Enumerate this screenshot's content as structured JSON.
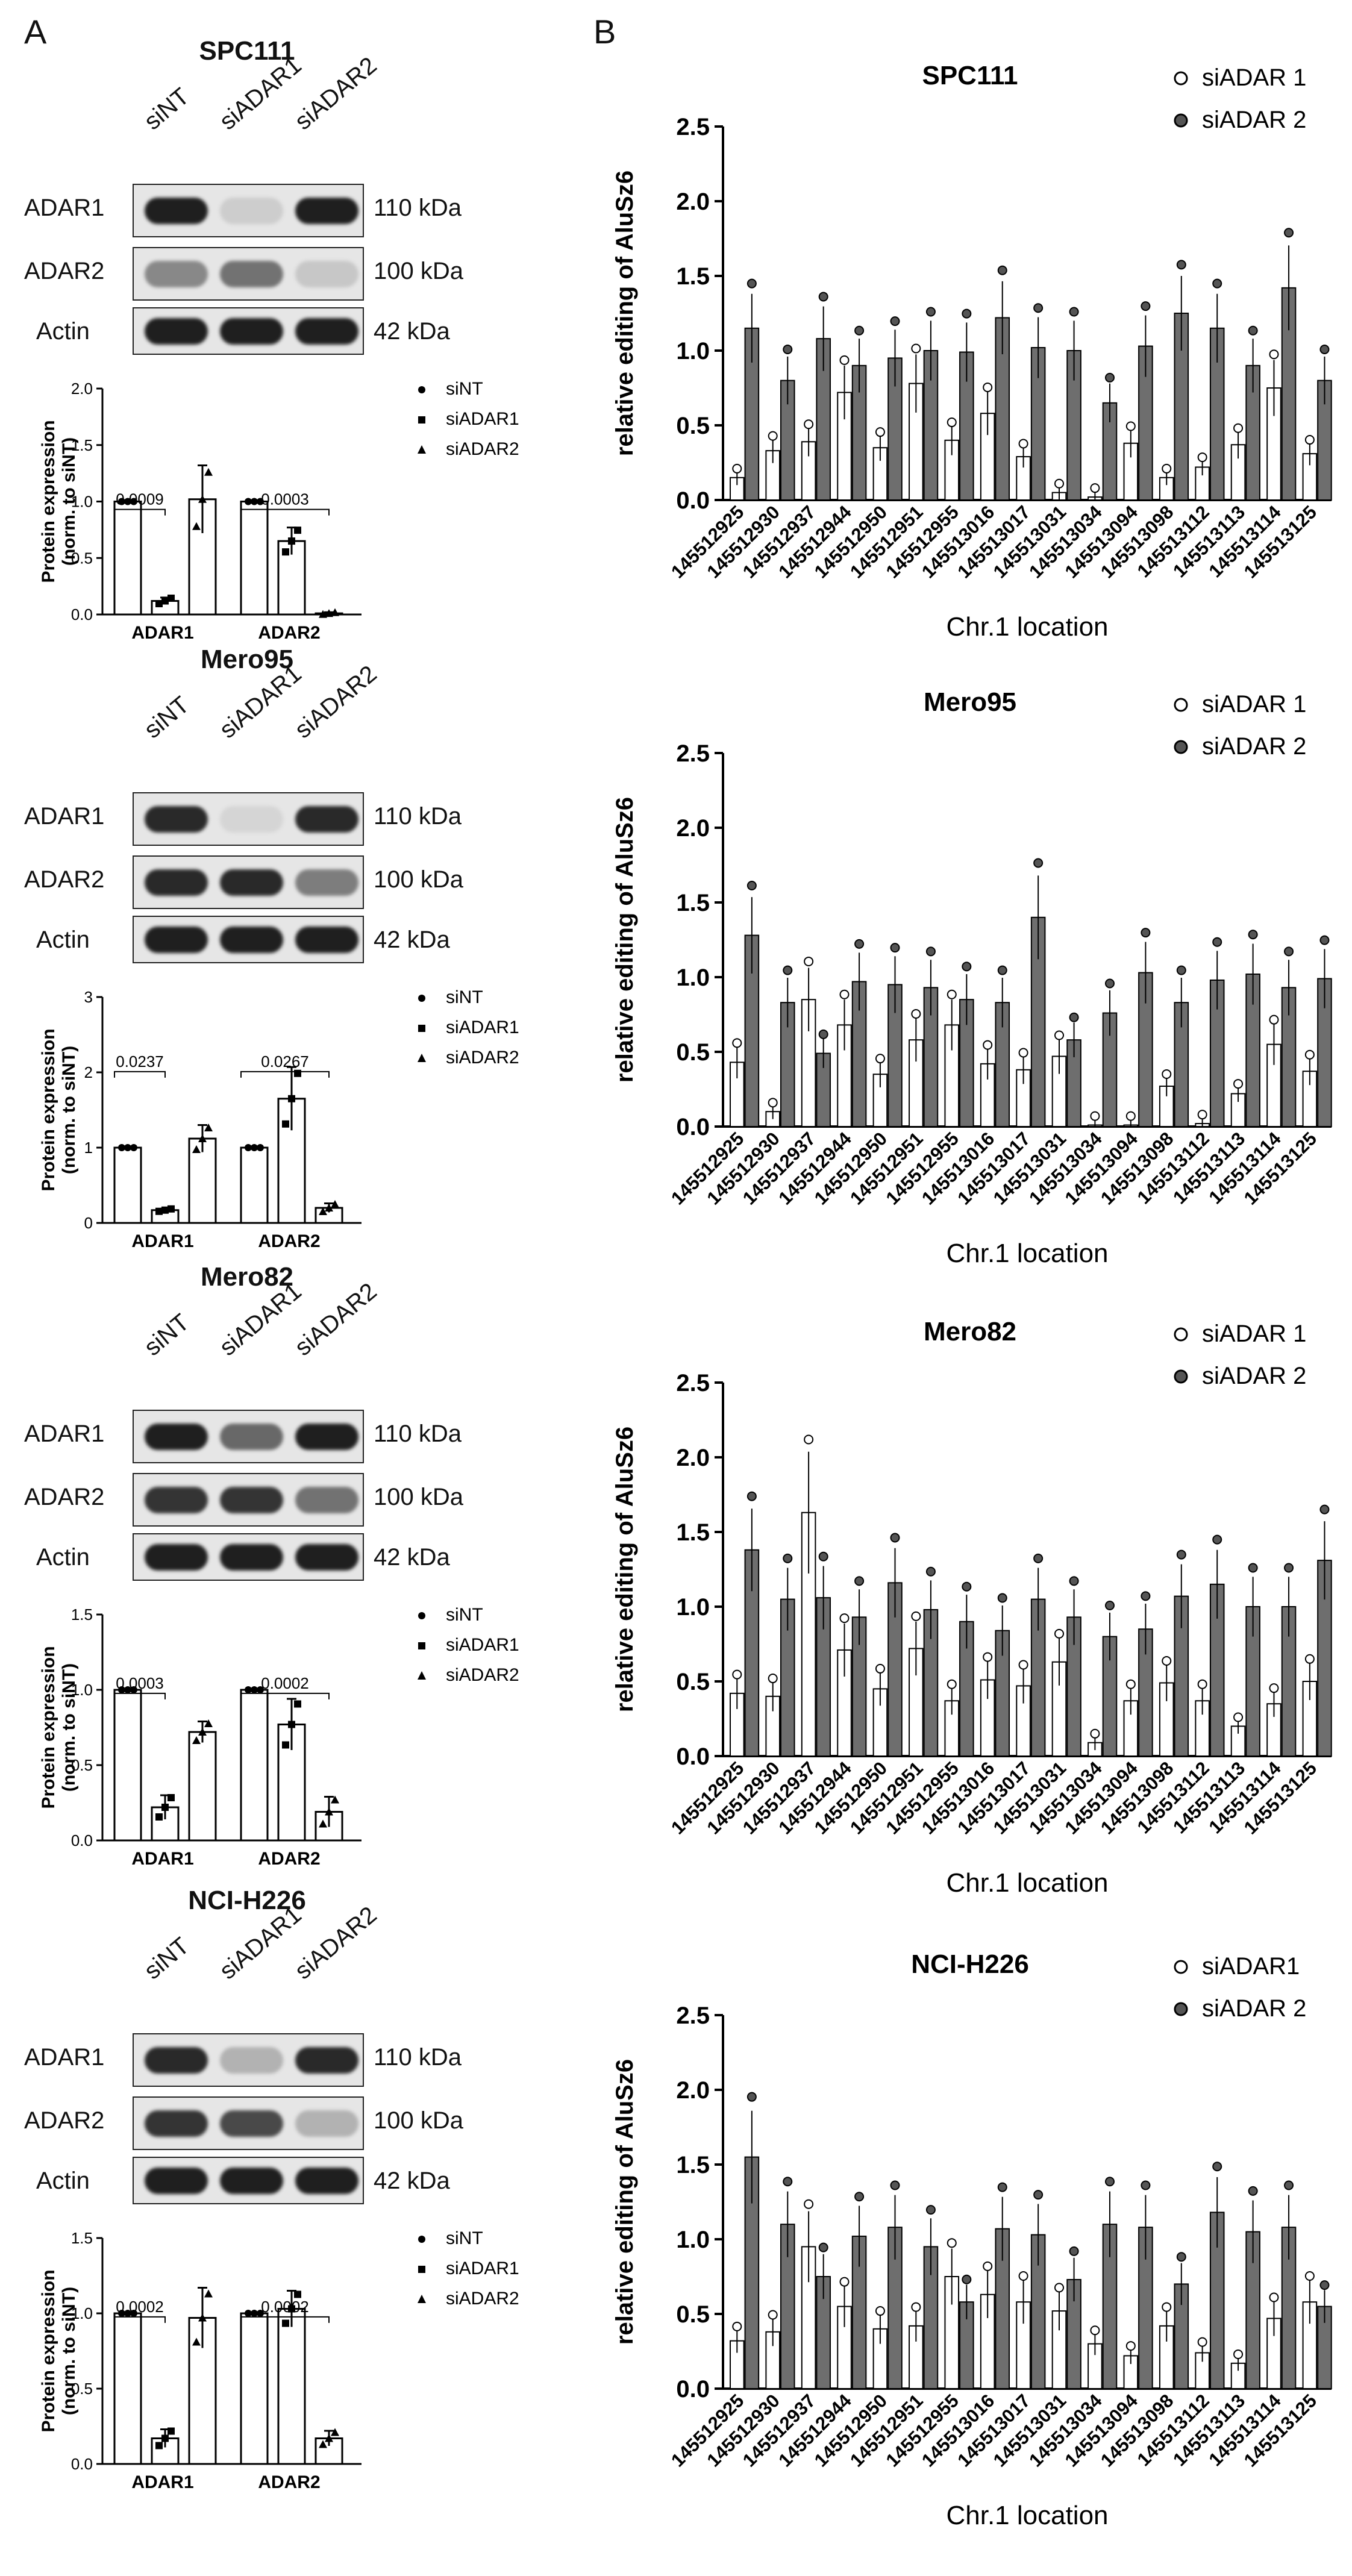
{
  "panels": {
    "a": "A",
    "b": "B"
  },
  "lanes": [
    "siNT",
    "siADAR1",
    "siADAR2"
  ],
  "kda": {
    "adar1": "110 kDa",
    "adar2": "100 kDa",
    "actin": "42 kDa"
  },
  "band_labels": {
    "adar1": "ADAR1",
    "adar2": "ADAR2",
    "actin": "Actin"
  },
  "a_legend": [
    "siNT",
    "siADAR1",
    "siADAR2"
  ],
  "a_ylabel_sub": "(norm. to siNT)",
  "a_ylabel_main": "Protein expression",
  "a_groups": [
    "ADAR1",
    "ADAR2"
  ],
  "b_legend": [
    "siADAR 1",
    "siADAR 2"
  ],
  "b_ylabel": "relative editing of AluSz6",
  "b_xlabel": "Chr.1 location",
  "b_positions": [
    "145512925",
    "145512930",
    "145512937",
    "145512944",
    "145512950",
    "145512951",
    "145512955",
    "145513016",
    "145513017",
    "145513031",
    "145513034",
    "145513094",
    "145513098",
    "145513112",
    "145513113",
    "145513114",
    "145513125"
  ],
  "cells": [
    {
      "name": "SPC111",
      "blot": {
        "adar1": [
          0.95,
          0.12,
          0.95
        ],
        "adar2": [
          0.45,
          0.55,
          0.15
        ],
        "actin": [
          0.95,
          0.95,
          0.95
        ]
      },
      "quant": {
        "ymax": 2.0,
        "ticks": [
          "0.0",
          "0.5",
          "1.0",
          "1.5",
          "2.0"
        ],
        "adar1": [
          1.0,
          0.12,
          1.02
        ],
        "adar2": [
          1.0,
          0.65,
          0.01
        ],
        "adar1_err": [
          0.0,
          0.03,
          0.3
        ],
        "adar2_err": [
          0.0,
          0.12,
          0.01
        ],
        "sig1": "0.0009",
        "sig2": "0.0003",
        "legend_labels": [
          "siNT",
          "siADAR1",
          "siADAR2"
        ]
      },
      "editing": {
        "ymax": 2.5,
        "si1": [
          0.15,
          0.33,
          0.39,
          0.72,
          0.35,
          0.78,
          0.4,
          0.58,
          0.29,
          0.05,
          0.02,
          0.38,
          0.15,
          0.22,
          0.37,
          0.75,
          0.31
        ],
        "si2": [
          1.15,
          0.8,
          1.08,
          0.9,
          0.95,
          1.0,
          0.99,
          1.22,
          1.02,
          1.0,
          0.65,
          1.03,
          1.25,
          1.15,
          0.9,
          1.42,
          0.8
        ]
      }
    },
    {
      "name": "Mero95",
      "blot": {
        "adar1": [
          0.9,
          0.08,
          0.9
        ],
        "adar2": [
          0.9,
          0.9,
          0.5
        ],
        "actin": [
          0.95,
          0.95,
          0.95
        ]
      },
      "quant": {
        "ymax": 3.0,
        "ticks": [
          "0",
          "1",
          "2",
          "3"
        ],
        "adar1": [
          1.0,
          0.17,
          1.12
        ],
        "adar2": [
          1.0,
          1.65,
          0.2
        ],
        "adar1_err": [
          0.0,
          0.02,
          0.18
        ],
        "adar2_err": [
          0.0,
          0.42,
          0.06
        ],
        "sig1": "0.0237",
        "sig2": "0.0267",
        "legend_labels": [
          "siNT",
          "siADAR1",
          "siADAR2"
        ]
      },
      "editing": {
        "ymax": 2.5,
        "si1": [
          0.43,
          0.1,
          0.85,
          0.68,
          0.35,
          0.58,
          0.68,
          0.42,
          0.38,
          0.47,
          0.01,
          0.01,
          0.27,
          0.02,
          0.22,
          0.55,
          0.37
        ],
        "si2": [
          1.28,
          0.83,
          0.49,
          0.97,
          0.95,
          0.93,
          0.85,
          0.83,
          1.4,
          0.58,
          0.76,
          1.03,
          0.83,
          0.98,
          1.02,
          0.93,
          0.99
        ]
      }
    },
    {
      "name": "Mero82",
      "blot": {
        "adar1": [
          0.95,
          0.6,
          0.95
        ],
        "adar2": [
          0.85,
          0.85,
          0.55
        ],
        "actin": [
          0.95,
          0.95,
          0.95
        ]
      },
      "quant": {
        "ymax": 1.5,
        "ticks": [
          "0.0",
          "0.5",
          "1.0",
          "1.5"
        ],
        "adar1": [
          1.0,
          0.22,
          0.72
        ],
        "adar2": [
          1.0,
          0.77,
          0.19
        ],
        "adar1_err": [
          0.0,
          0.08,
          0.07
        ],
        "adar2_err": [
          0.0,
          0.17,
          0.1
        ],
        "sig1": "0.0003",
        "sig2": "0.0002",
        "legend_labels": [
          "siNT",
          "siADAR1",
          "siADAR2"
        ]
      },
      "editing": {
        "ymax": 2.5,
        "si1": [
          0.42,
          0.4,
          1.63,
          0.71,
          0.45,
          0.72,
          0.37,
          0.51,
          0.47,
          0.63,
          0.09,
          0.37,
          0.49,
          0.37,
          0.2,
          0.35,
          0.5
        ],
        "si2": [
          1.38,
          1.05,
          1.06,
          0.93,
          1.16,
          0.98,
          0.9,
          0.84,
          1.05,
          0.93,
          0.8,
          0.85,
          1.07,
          1.15,
          1.0,
          1.0,
          1.31
        ]
      }
    },
    {
      "name": "NCI-H226",
      "blot": {
        "adar1": [
          0.9,
          0.25,
          0.9
        ],
        "adar2": [
          0.85,
          0.75,
          0.25
        ],
        "actin": [
          0.95,
          0.95,
          0.95
        ]
      },
      "quant": {
        "ymax": 1.5,
        "ticks": [
          "0.0",
          "0.5",
          "1.0",
          "1.5"
        ],
        "adar1": [
          1.0,
          0.17,
          0.97
        ],
        "adar2": [
          1.0,
          1.03,
          0.17
        ],
        "adar1_err": [
          0.0,
          0.06,
          0.2
        ],
        "adar2_err": [
          0.0,
          0.12,
          0.05
        ],
        "sig1": "0.0002",
        "sig2": "0.0002",
        "legend_labels": [
          "siNT",
          "siADAR1",
          "siADAR2"
        ]
      },
      "editing": {
        "ymax": 2.5,
        "si1": [
          0.32,
          0.38,
          0.95,
          0.55,
          0.4,
          0.42,
          0.75,
          0.63,
          0.58,
          0.52,
          0.3,
          0.22,
          0.42,
          0.24,
          0.17,
          0.47,
          0.58
        ],
        "si2": [
          1.55,
          1.1,
          0.75,
          1.02,
          1.08,
          0.95,
          0.58,
          1.07,
          1.03,
          0.73,
          1.1,
          1.08,
          0.7,
          1.18,
          1.05,
          1.08,
          0.55
        ]
      }
    }
  ],
  "b_legend_cells": [
    [
      "siADAR 1",
      "siADAR 2"
    ],
    [
      "siADAR 1",
      "siADAR 2"
    ],
    [
      "siADAR 1",
      "siADAR 2"
    ],
    [
      "siADAR1",
      "siADAR 2"
    ]
  ],
  "b_ticks": [
    "0.0",
    "0.5",
    "1.0",
    "1.5",
    "2.0",
    "2.5"
  ],
  "chart_data": [
    {
      "type": "bar",
      "title": "SPC111",
      "xlabel": "Chr.1 location",
      "ylabel": "relative editing of AluSz6",
      "ylim": [
        0,
        2.5
      ]
    },
    {
      "type": "bar",
      "title": "Mero95",
      "xlabel": "Chr.1 location",
      "ylabel": "relative editing of AluSz6",
      "ylim": [
        0,
        2.5
      ]
    },
    {
      "type": "bar",
      "title": "Mero82",
      "xlabel": "Chr.1 location",
      "ylabel": "relative editing of AluSz6",
      "ylim": [
        0,
        2.5
      ]
    },
    {
      "type": "bar",
      "title": "NCI-H226",
      "xlabel": "Chr.1 location",
      "ylabel": "relative editing of AluSz6",
      "ylim": [
        0,
        2.5
      ]
    }
  ]
}
